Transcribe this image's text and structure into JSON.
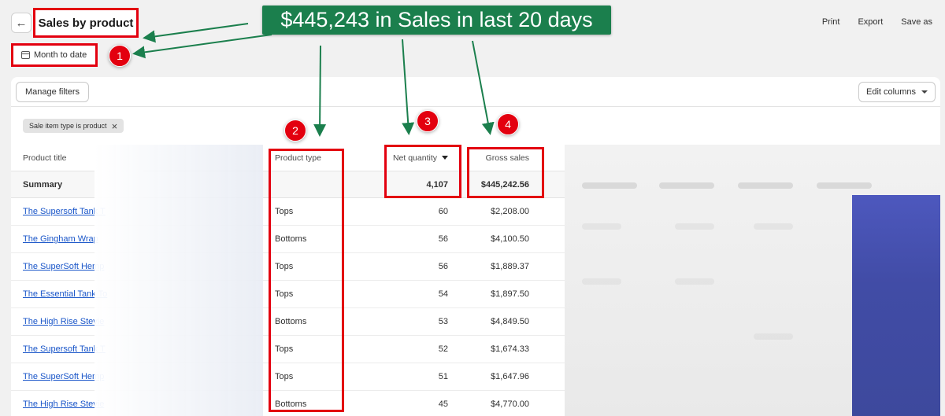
{
  "header": {
    "back_icon": "arrow-left-icon",
    "title": "Sales by product",
    "date_range": "Month to date",
    "actions": {
      "print": "Print",
      "export": "Export",
      "save_as": "Save as"
    }
  },
  "annotation": {
    "banner": "$445,243 in Sales in last 20 days",
    "badges": [
      "1",
      "2",
      "3",
      "4"
    ],
    "color_red": "#e3000f",
    "color_green": "#1b7f4d"
  },
  "toolbar": {
    "manage_filters": "Manage filters",
    "edit_columns": "Edit columns",
    "filter_chip": "Sale item type is product"
  },
  "table": {
    "columns": {
      "product_title": "Product title",
      "product_type": "Product type",
      "net_quantity": "Net quantity",
      "gross_sales": "Gross sales"
    },
    "summary": {
      "label": "Summary",
      "net_quantity": "4,107",
      "gross_sales": "$445,242.56"
    },
    "rows": [
      {
        "title": "The Supersoft Tank T",
        "type": "Tops",
        "qty": "60",
        "gross": "$2,208.00"
      },
      {
        "title": "The Gingham Wrap",
        "type": "Bottoms",
        "qty": "56",
        "gross": "$4,100.50"
      },
      {
        "title": "The SuperSoft Hemp",
        "type": "Tops",
        "qty": "56",
        "gross": "$1,889.37"
      },
      {
        "title": "The Essential Tank To",
        "type": "Tops",
        "qty": "54",
        "gross": "$1,897.50"
      },
      {
        "title": "The High Rise Stevie",
        "type": "Bottoms",
        "qty": "53",
        "gross": "$4,849.50"
      },
      {
        "title": "The Supersoft Tank T",
        "type": "Tops",
        "qty": "52",
        "gross": "$1,674.33"
      },
      {
        "title": "The SuperSoft Hemp",
        "type": "Tops",
        "qty": "51",
        "gross": "$1,647.96"
      },
      {
        "title": "The High Rise Stevie",
        "type": "Bottoms",
        "qty": "45",
        "gross": "$4,770.00"
      }
    ]
  }
}
